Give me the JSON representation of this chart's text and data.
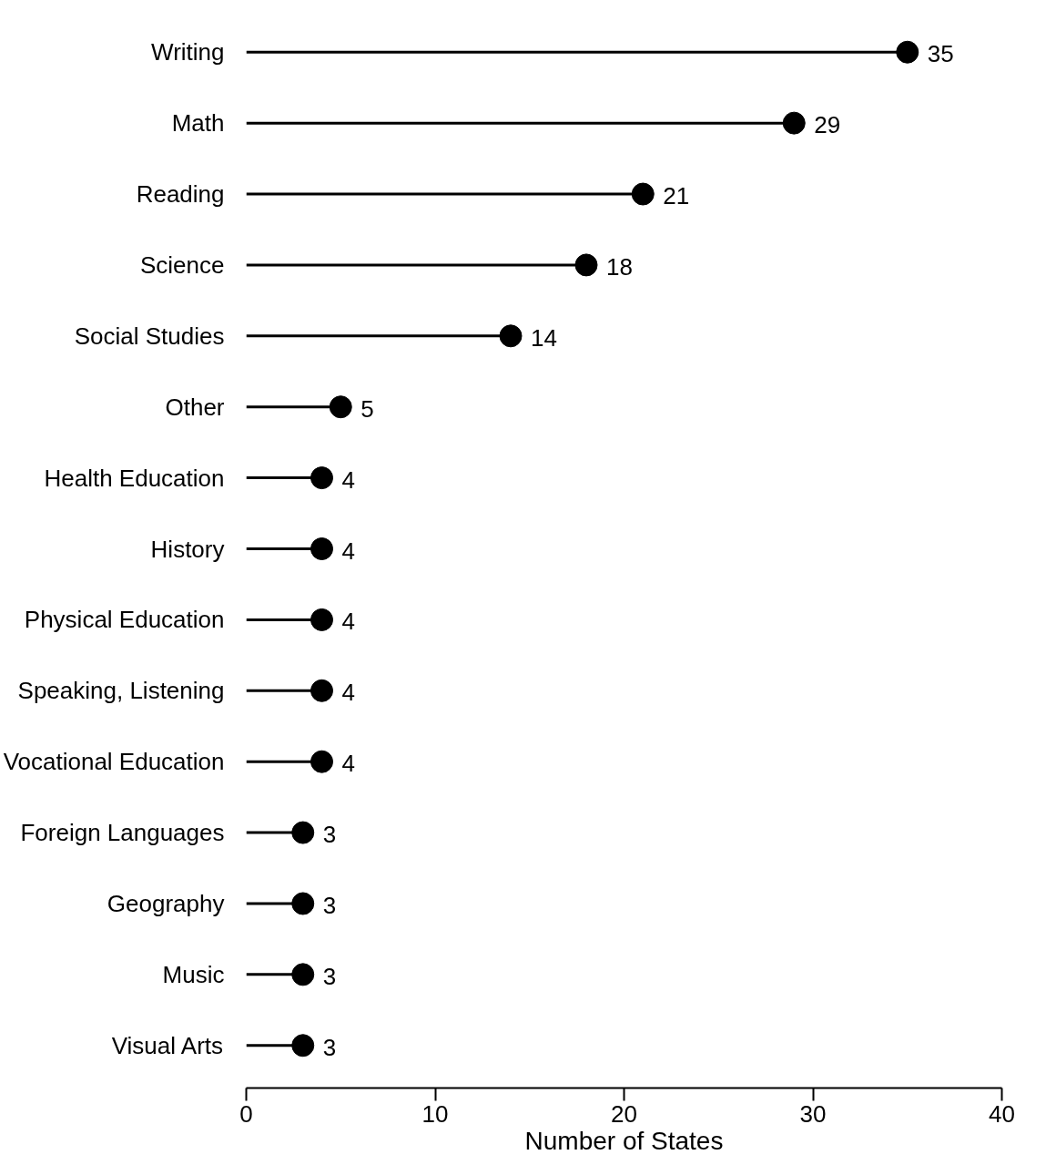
{
  "chart_data": {
    "type": "lollipop",
    "orientation": "horizontal",
    "xlabel": "Number of States",
    "categories": [
      "Writing",
      "Math",
      "Reading",
      "Science",
      "Social Studies",
      "Other",
      "Health Education",
      "History",
      "Physical Education",
      "Speaking, Listening",
      "Vocational Education",
      "Foreign Languages",
      "Geography",
      "Music",
      "Visual Arts"
    ],
    "values": [
      35,
      29,
      21,
      18,
      14,
      5,
      4,
      4,
      4,
      4,
      4,
      3,
      3,
      3,
      3
    ],
    "color": "#000000",
    "marker": "circle",
    "data_labels": true,
    "xlim": [
      0,
      40
    ],
    "xticks": [
      0,
      10,
      20,
      30,
      40
    ],
    "grid": false
  }
}
